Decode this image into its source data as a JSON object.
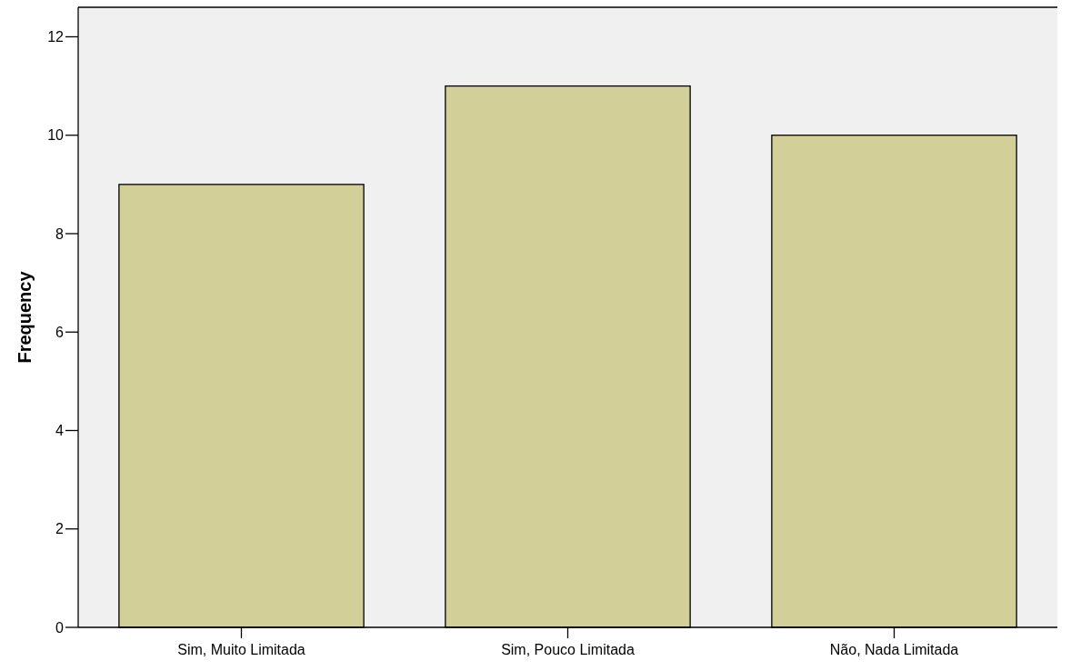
{
  "chart_data": {
    "type": "bar",
    "ylabel": "Frequency",
    "categories": [
      "Sim, Muito Limitada",
      "Sim, Pouco Limitada",
      "Não, Nada Limitada"
    ],
    "values": [
      9,
      11,
      10
    ],
    "color": "#d3cf98",
    "ylim": [
      0,
      12.6
    ],
    "yticks": [
      0,
      2,
      4,
      6,
      8,
      10,
      12
    ],
    "grid": false
  }
}
